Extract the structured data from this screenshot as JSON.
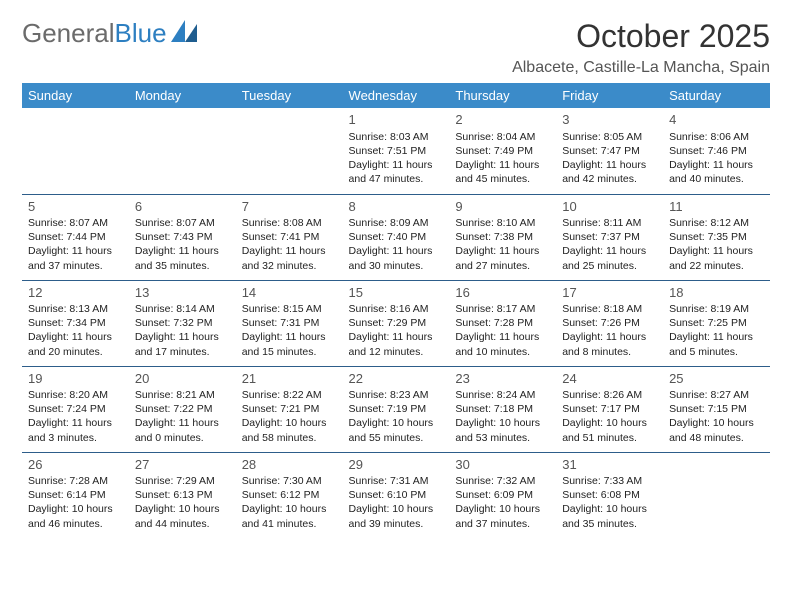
{
  "logo": {
    "part1": "General",
    "part2": "Blue"
  },
  "title": "October 2025",
  "location": "Albacete, Castille-La Mancha, Spain",
  "colors": {
    "header_bg": "#3b8bc9",
    "header_text": "#ffffff",
    "row_divider": "#2d5d8a",
    "logo_gray": "#6b6b6b",
    "logo_blue": "#2d7fc1",
    "text": "#222222",
    "daynum": "#555555"
  },
  "day_headers": [
    "Sunday",
    "Monday",
    "Tuesday",
    "Wednesday",
    "Thursday",
    "Friday",
    "Saturday"
  ],
  "weeks": [
    [
      {},
      {},
      {},
      {
        "n": "1",
        "sr": "8:03 AM",
        "ss": "7:51 PM",
        "dl": "11 hours and 47 minutes."
      },
      {
        "n": "2",
        "sr": "8:04 AM",
        "ss": "7:49 PM",
        "dl": "11 hours and 45 minutes."
      },
      {
        "n": "3",
        "sr": "8:05 AM",
        "ss": "7:47 PM",
        "dl": "11 hours and 42 minutes."
      },
      {
        "n": "4",
        "sr": "8:06 AM",
        "ss": "7:46 PM",
        "dl": "11 hours and 40 minutes."
      }
    ],
    [
      {
        "n": "5",
        "sr": "8:07 AM",
        "ss": "7:44 PM",
        "dl": "11 hours and 37 minutes."
      },
      {
        "n": "6",
        "sr": "8:07 AM",
        "ss": "7:43 PM",
        "dl": "11 hours and 35 minutes."
      },
      {
        "n": "7",
        "sr": "8:08 AM",
        "ss": "7:41 PM",
        "dl": "11 hours and 32 minutes."
      },
      {
        "n": "8",
        "sr": "8:09 AM",
        "ss": "7:40 PM",
        "dl": "11 hours and 30 minutes."
      },
      {
        "n": "9",
        "sr": "8:10 AM",
        "ss": "7:38 PM",
        "dl": "11 hours and 27 minutes."
      },
      {
        "n": "10",
        "sr": "8:11 AM",
        "ss": "7:37 PM",
        "dl": "11 hours and 25 minutes."
      },
      {
        "n": "11",
        "sr": "8:12 AM",
        "ss": "7:35 PM",
        "dl": "11 hours and 22 minutes."
      }
    ],
    [
      {
        "n": "12",
        "sr": "8:13 AM",
        "ss": "7:34 PM",
        "dl": "11 hours and 20 minutes."
      },
      {
        "n": "13",
        "sr": "8:14 AM",
        "ss": "7:32 PM",
        "dl": "11 hours and 17 minutes."
      },
      {
        "n": "14",
        "sr": "8:15 AM",
        "ss": "7:31 PM",
        "dl": "11 hours and 15 minutes."
      },
      {
        "n": "15",
        "sr": "8:16 AM",
        "ss": "7:29 PM",
        "dl": "11 hours and 12 minutes."
      },
      {
        "n": "16",
        "sr": "8:17 AM",
        "ss": "7:28 PM",
        "dl": "11 hours and 10 minutes."
      },
      {
        "n": "17",
        "sr": "8:18 AM",
        "ss": "7:26 PM",
        "dl": "11 hours and 8 minutes."
      },
      {
        "n": "18",
        "sr": "8:19 AM",
        "ss": "7:25 PM",
        "dl": "11 hours and 5 minutes."
      }
    ],
    [
      {
        "n": "19",
        "sr": "8:20 AM",
        "ss": "7:24 PM",
        "dl": "11 hours and 3 minutes."
      },
      {
        "n": "20",
        "sr": "8:21 AM",
        "ss": "7:22 PM",
        "dl": "11 hours and 0 minutes."
      },
      {
        "n": "21",
        "sr": "8:22 AM",
        "ss": "7:21 PM",
        "dl": "10 hours and 58 minutes."
      },
      {
        "n": "22",
        "sr": "8:23 AM",
        "ss": "7:19 PM",
        "dl": "10 hours and 55 minutes."
      },
      {
        "n": "23",
        "sr": "8:24 AM",
        "ss": "7:18 PM",
        "dl": "10 hours and 53 minutes."
      },
      {
        "n": "24",
        "sr": "8:26 AM",
        "ss": "7:17 PM",
        "dl": "10 hours and 51 minutes."
      },
      {
        "n": "25",
        "sr": "8:27 AM",
        "ss": "7:15 PM",
        "dl": "10 hours and 48 minutes."
      }
    ],
    [
      {
        "n": "26",
        "sr": "7:28 AM",
        "ss": "6:14 PM",
        "dl": "10 hours and 46 minutes."
      },
      {
        "n": "27",
        "sr": "7:29 AM",
        "ss": "6:13 PM",
        "dl": "10 hours and 44 minutes."
      },
      {
        "n": "28",
        "sr": "7:30 AM",
        "ss": "6:12 PM",
        "dl": "10 hours and 41 minutes."
      },
      {
        "n": "29",
        "sr": "7:31 AM",
        "ss": "6:10 PM",
        "dl": "10 hours and 39 minutes."
      },
      {
        "n": "30",
        "sr": "7:32 AM",
        "ss": "6:09 PM",
        "dl": "10 hours and 37 minutes."
      },
      {
        "n": "31",
        "sr": "7:33 AM",
        "ss": "6:08 PM",
        "dl": "10 hours and 35 minutes."
      },
      {}
    ]
  ],
  "labels": {
    "sunrise": "Sunrise: ",
    "sunset": "Sunset: ",
    "daylight": "Daylight: "
  }
}
